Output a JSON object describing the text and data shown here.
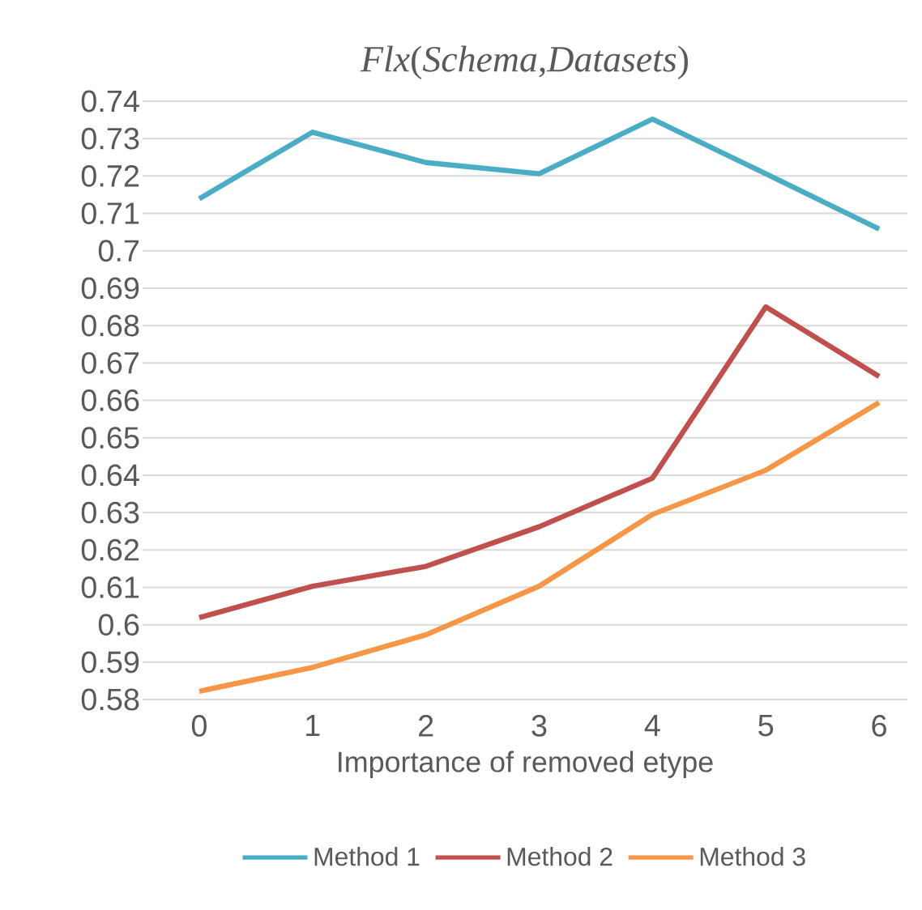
{
  "chart_data": {
    "type": "line",
    "title": "*Flx*(*Schema*,*Datasets*)",
    "xlabel": "Importance of removed etype",
    "categories": [
      "0",
      "1",
      "2",
      "3",
      "4",
      "5",
      "6"
    ],
    "series": [
      {
        "name": "Method 1",
        "color": "#4bacc6",
        "values": [
          0.7139,
          0.7317,
          0.7236,
          0.7206,
          0.7352,
          0.7206,
          0.7058
        ]
      },
      {
        "name": "Method 2",
        "color": "#c0504d",
        "values": [
          0.6019,
          0.6103,
          0.6156,
          0.6262,
          0.6392,
          0.685,
          0.6664
        ]
      },
      {
        "name": "Method 3",
        "color": "#f79646",
        "values": [
          0.5822,
          0.5886,
          0.5973,
          0.6103,
          0.6295,
          0.6413,
          0.6594
        ]
      }
    ],
    "ylim": [
      0.58,
      0.74
    ],
    "yticks": [
      0.58,
      0.59,
      0.6,
      0.61,
      0.62,
      0.63,
      0.64,
      0.65,
      0.66,
      0.67,
      0.68,
      0.69,
      0.7,
      0.71,
      0.72,
      0.73,
      0.74
    ],
    "grid": "y",
    "legend": "bottom"
  }
}
